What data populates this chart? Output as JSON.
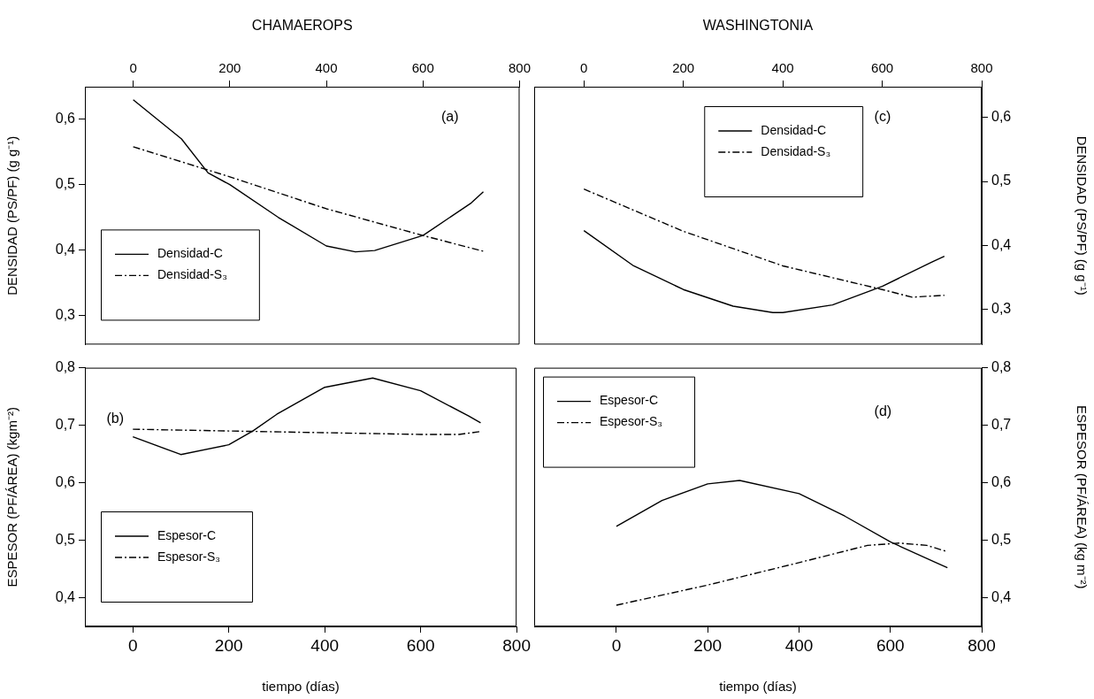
{
  "chart_data": [
    {
      "type": "line",
      "title": "CHAMAEROPS",
      "ylabel": "DENSIDAD (PS/PF) (g g⁻¹)",
      "xlim": [
        -100,
        800
      ],
      "xticks": [
        0,
        200,
        400,
        600,
        800
      ],
      "ylim": [
        0.255,
        0.65
      ],
      "yticks": [
        {
          "value": 0.3,
          "label": "0,3"
        },
        {
          "value": 0.4,
          "label": "0,4"
        },
        {
          "value": 0.5,
          "label": "0,5"
        },
        {
          "value": 0.6,
          "label": "0,6"
        }
      ],
      "legend": "bottom left",
      "grid": false,
      "marker": "none",
      "annotations": [
        "(a)"
      ],
      "series": [
        {
          "name": "Densidad-C",
          "color": "#000000",
          "line_style": "solid",
          "x": [
            0,
            100,
            155,
            200,
            300,
            400,
            460,
            500,
            600,
            700,
            725
          ],
          "values": [
            0.63,
            0.57,
            0.518,
            0.5,
            0.45,
            0.406,
            0.397,
            0.399,
            0.422,
            0.472,
            0.489
          ]
        },
        {
          "name": "Densidad-S₃",
          "color": "#000000",
          "line_style": "dashed",
          "x": [
            0,
            200,
            400,
            600,
            725
          ],
          "values": [
            0.558,
            0.512,
            0.463,
            0.422,
            0.398
          ]
        }
      ]
    },
    {
      "type": "line",
      "ylabel": "ESPESOR (PF/ÁREA) (kgm⁻²)",
      "xlabel": "tiempo (días)",
      "xlim": [
        -100,
        800
      ],
      "xticks": [
        0,
        200,
        400,
        600,
        800
      ],
      "ylim": [
        0.35,
        0.8
      ],
      "yticks": [
        {
          "value": 0.4,
          "label": "0,4"
        },
        {
          "value": 0.5,
          "label": "0,5"
        },
        {
          "value": 0.6,
          "label": "0,6"
        },
        {
          "value": 0.7,
          "label": "0,7"
        },
        {
          "value": 0.8,
          "label": "0,8"
        }
      ],
      "legend": "bottom left",
      "grid": false,
      "marker": "none",
      "annotations": [
        "(b)"
      ],
      "series": [
        {
          "name": "Espesor-C",
          "color": "#000000",
          "line_style": "solid",
          "x": [
            0,
            100,
            200,
            250,
            300,
            400,
            500,
            600,
            700,
            725
          ],
          "values": [
            0.68,
            0.649,
            0.666,
            0.69,
            0.719,
            0.766,
            0.782,
            0.76,
            0.716,
            0.704
          ]
        },
        {
          "name": "Espesor-S₃",
          "color": "#000000",
          "line_style": "dashed",
          "x": [
            0,
            200,
            400,
            600,
            680,
            725
          ],
          "values": [
            0.693,
            0.69,
            0.687,
            0.684,
            0.684,
            0.689
          ]
        }
      ]
    },
    {
      "type": "line",
      "title": "WASHINGTONIA",
      "y2label": "DENSIDAD (PS/PF) (g g⁻¹)",
      "xlim": [
        -100,
        800
      ],
      "xticks": [
        0,
        200,
        400,
        600,
        800
      ],
      "y2lim": [
        0.245,
        0.648
      ],
      "y2ticks": [
        {
          "value": 0.3,
          "label": "0,3"
        },
        {
          "value": 0.4,
          "label": "0,4"
        },
        {
          "value": 0.5,
          "label": "0,5"
        },
        {
          "value": 0.6,
          "label": "0,6"
        }
      ],
      "legend": "top",
      "grid": false,
      "marker": "none",
      "annotations": [
        "(c)"
      ],
      "series": [
        {
          "name": "Densidad-C",
          "color": "#000000",
          "line_style": "solid",
          "axis": "y2",
          "x": [
            0,
            100,
            200,
            300,
            380,
            400,
            500,
            600,
            700,
            725
          ],
          "values": [
            0.423,
            0.368,
            0.331,
            0.305,
            0.295,
            0.295,
            0.307,
            0.336,
            0.374,
            0.383
          ]
        },
        {
          "name": "Densidad-S₃",
          "color": "#000000",
          "line_style": "dashed",
          "axis": "y2",
          "x": [
            0,
            200,
            300,
            400,
            600,
            660,
            725
          ],
          "values": [
            0.488,
            0.422,
            0.395,
            0.368,
            0.331,
            0.319,
            0.322
          ]
        }
      ]
    },
    {
      "type": "line",
      "y2label": "ESPESOR (PF/ÁREA) (kg m⁻²)",
      "xlabel": "tiempo (días)",
      "xlim": [
        -180,
        800
      ],
      "xticks": [
        0,
        200,
        400,
        600,
        800
      ],
      "y2lim": [
        0.35,
        0.8
      ],
      "y2ticks": [
        {
          "value": 0.4,
          "label": "0,4"
        },
        {
          "value": 0.5,
          "label": "0,5"
        },
        {
          "value": 0.6,
          "label": "0,6"
        },
        {
          "value": 0.7,
          "label": "0,7"
        },
        {
          "value": 0.8,
          "label": "0,8"
        }
      ],
      "legend": "top left",
      "grid": false,
      "marker": "none",
      "annotations": [
        "(d)"
      ],
      "series": [
        {
          "name": "Espesor-C",
          "color": "#000000",
          "line_style": "solid",
          "axis": "y2",
          "x": [
            0,
            100,
            200,
            270,
            400,
            500,
            600,
            700,
            725
          ],
          "values": [
            0.524,
            0.569,
            0.598,
            0.604,
            0.581,
            0.542,
            0.497,
            0.461,
            0.452
          ]
        },
        {
          "name": "Espesor-S₃",
          "color": "#000000",
          "line_style": "dashed",
          "axis": "y2",
          "x": [
            0,
            200,
            400,
            550,
            620,
            680,
            725
          ],
          "values": [
            0.387,
            0.422,
            0.461,
            0.491,
            0.495,
            0.491,
            0.48
          ]
        }
      ]
    }
  ]
}
